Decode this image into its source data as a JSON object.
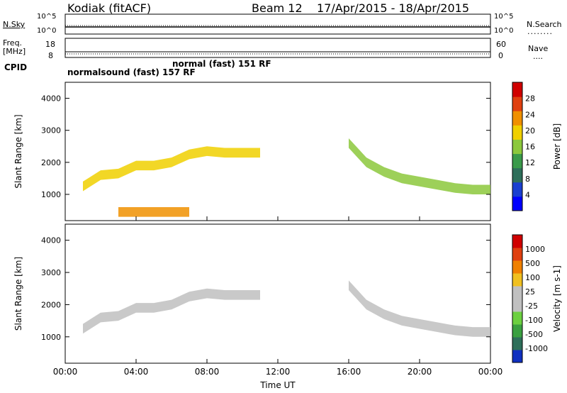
{
  "header": {
    "station": "Kodiak (fitACF)",
    "beam": "Beam 12",
    "date_range": "17/Apr/2015 - 18/Apr/2015"
  },
  "top_panels": {
    "nsky_label": "N.Sky",
    "nsky_ticks": [
      "10^5",
      "10^0"
    ],
    "nsearch_label": "N.Search",
    "freq_label": "Freq.",
    "freq_unit": "[MHz]",
    "freq_ticks": [
      "18",
      "8"
    ],
    "nave_label": "Nave",
    "nave_ticks": [
      "60",
      "0"
    ],
    "cpid_label": "CPID",
    "cpid_entries": [
      "normalsound (fast) 157 RF",
      "normal (fast) 151 RF"
    ]
  },
  "chart_data": [
    {
      "type": "heatmap",
      "title": "",
      "ylabel": "Slant Range [km]",
      "xlabel": "",
      "ylim": [
        180,
        4500
      ],
      "yticks": [
        1000,
        2000,
        3000,
        4000
      ],
      "colorbar": {
        "label": "Power [dB]",
        "ticks": [
          "4",
          "8",
          "12",
          "16",
          "20",
          "24",
          "28"
        ],
        "range": [
          0,
          30
        ],
        "colors": [
          "#0000ff",
          "#1a3fd0",
          "#2e6f5a",
          "#3a9a4a",
          "#8cc83c",
          "#f0d000",
          "#f09000",
          "#e04010",
          "#d00000"
        ]
      },
      "echo_bands": [
        {
          "name": "afternoon-ionospheric",
          "t": [
            1.0,
            2.0,
            3.0,
            4.0,
            5.0,
            6.0,
            7.0,
            8.0,
            9.0,
            10.0,
            11.0
          ],
          "range_km": [
            1250,
            1600,
            1650,
            1900,
            1900,
            2000,
            2250,
            2350,
            2300,
            2300,
            2300
          ],
          "power_db": 20
        },
        {
          "name": "evening-descending",
          "t": [
            16.0,
            17.0,
            18.0,
            19.0,
            20.0,
            21.0,
            22.0,
            23.0,
            24.0
          ],
          "range_km": [
            2600,
            2000,
            1700,
            1500,
            1400,
            1300,
            1200,
            1150,
            1150
          ],
          "power_db": 14
        },
        {
          "name": "near-range",
          "t": [
            3.0,
            4.0,
            5.0,
            6.0,
            7.0
          ],
          "range_km": [
            450,
            450,
            450,
            450,
            450
          ],
          "power_db": 22
        }
      ]
    },
    {
      "type": "heatmap",
      "title": "",
      "ylabel": "Slant Range [km]",
      "xlabel": "Time UT",
      "ylim": [
        180,
        4500
      ],
      "yticks": [
        1000,
        2000,
        3000,
        4000
      ],
      "x_tick_labels": [
        "00:00",
        "04:00",
        "08:00",
        "12:00",
        "16:00",
        "20:00",
        "00:00"
      ],
      "colorbar": {
        "label": "Velocity [m s-1]",
        "ticks": [
          "1000",
          "500",
          "100",
          "25",
          "-25",
          "-100",
          "-500",
          "-1000"
        ],
        "colors": [
          "#1030c0",
          "#2e6f5a",
          "#3aa040",
          "#6cd040",
          "#c0c0c0",
          "#c0c0c0",
          "#f0c020",
          "#f08000",
          "#e04010",
          "#d00000"
        ]
      },
      "echo_bands": [
        {
          "name": "ground-scatter-afternoon",
          "t": [
            1.0,
            2.0,
            3.0,
            4.0,
            5.0,
            6.0,
            7.0,
            8.0,
            9.0,
            10.0,
            11.0
          ],
          "range_km": [
            1250,
            1600,
            1650,
            1900,
            1900,
            2000,
            2250,
            2350,
            2300,
            2300,
            2300
          ],
          "velocity": 0
        },
        {
          "name": "ground-scatter-evening",
          "t": [
            16.0,
            17.0,
            18.0,
            19.0,
            20.0,
            21.0,
            22.0,
            23.0,
            24.0
          ],
          "range_km": [
            2600,
            2000,
            1700,
            1500,
            1400,
            1300,
            1200,
            1150,
            1150
          ],
          "velocity": 0
        }
      ]
    }
  ]
}
